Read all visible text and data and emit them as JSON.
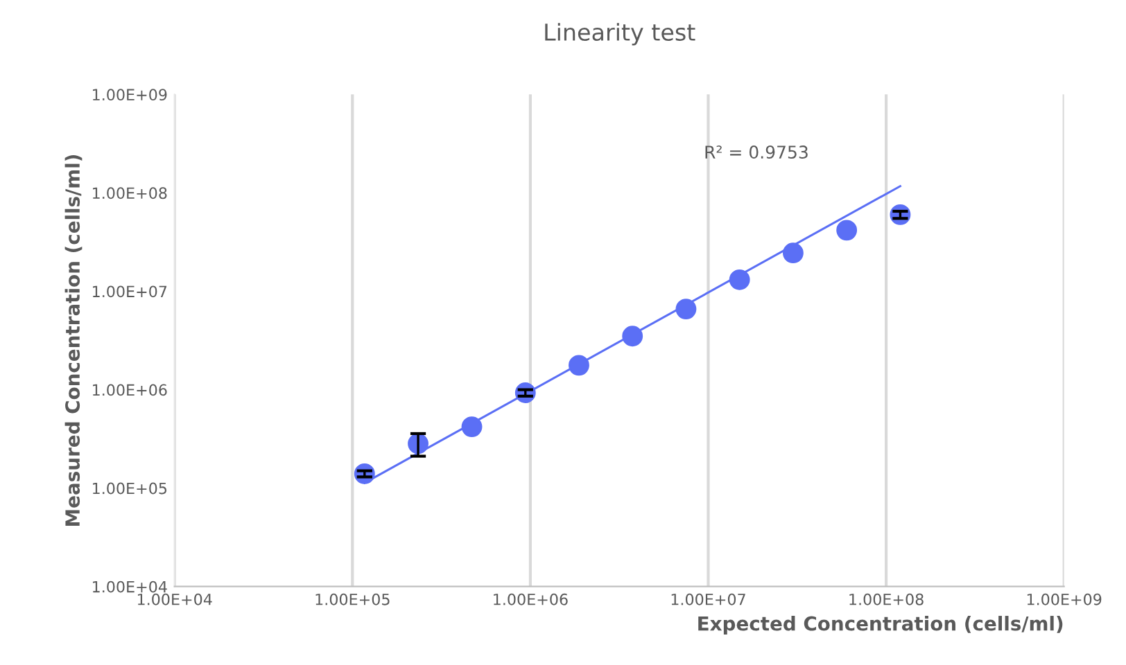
{
  "chart_data": {
    "type": "scatter",
    "title": "Linearity test",
    "xlabel": "Expected Concentration (cells/ml)",
    "ylabel": "Measured Concentration (cells/ml)",
    "log": "xy",
    "grid": "x",
    "xlim": [
      10000,
      1000000000
    ],
    "ylim": [
      10000,
      1000000000
    ],
    "xticks": [
      {
        "value": 10000,
        "label": "1.00E+04"
      },
      {
        "value": 100000,
        "label": "1.00E+05"
      },
      {
        "value": 1000000,
        "label": "1.00E+06"
      },
      {
        "value": 10000000,
        "label": "1.00E+07"
      },
      {
        "value": 100000000,
        "label": "1.00E+08"
      },
      {
        "value": 1000000000,
        "label": "1.00E+09"
      }
    ],
    "yticks": [
      {
        "value": 10000,
        "label": "1.00E+04"
      },
      {
        "value": 100000,
        "label": "1.00E+05"
      },
      {
        "value": 1000000,
        "label": "1.00E+06"
      },
      {
        "value": 10000000,
        "label": "1.00E+07"
      },
      {
        "value": 100000000,
        "label": "1.00E+08"
      },
      {
        "value": 1000000000,
        "label": "1.00E+09"
      }
    ],
    "annotations": [
      "R² = 0.9753"
    ],
    "series": [
      {
        "marker": "circle",
        "color": "#5b6ff5",
        "x": [
          117000,
          234000,
          469000,
          938000,
          1875000,
          3750000,
          7500000,
          15000000,
          30000000,
          60000000,
          120000000
        ],
        "values": [
          140000,
          283000,
          420000,
          930000,
          1770000,
          3500000,
          6600000,
          13100000,
          24500000,
          41700000,
          60000000
        ],
        "errors": [
          [
            130000,
            150000
          ],
          [
            211000,
            358000
          ],
          null,
          [
            860000,
            1000000
          ],
          null,
          null,
          null,
          null,
          null,
          null,
          [
            55000000,
            65000000
          ]
        ]
      },
      {
        "type": "line",
        "marker": "none",
        "color": "#5b6ff5",
        "x": [
          117000,
          120000000
        ],
        "values": [
          113000,
          117000000
        ]
      }
    ]
  }
}
